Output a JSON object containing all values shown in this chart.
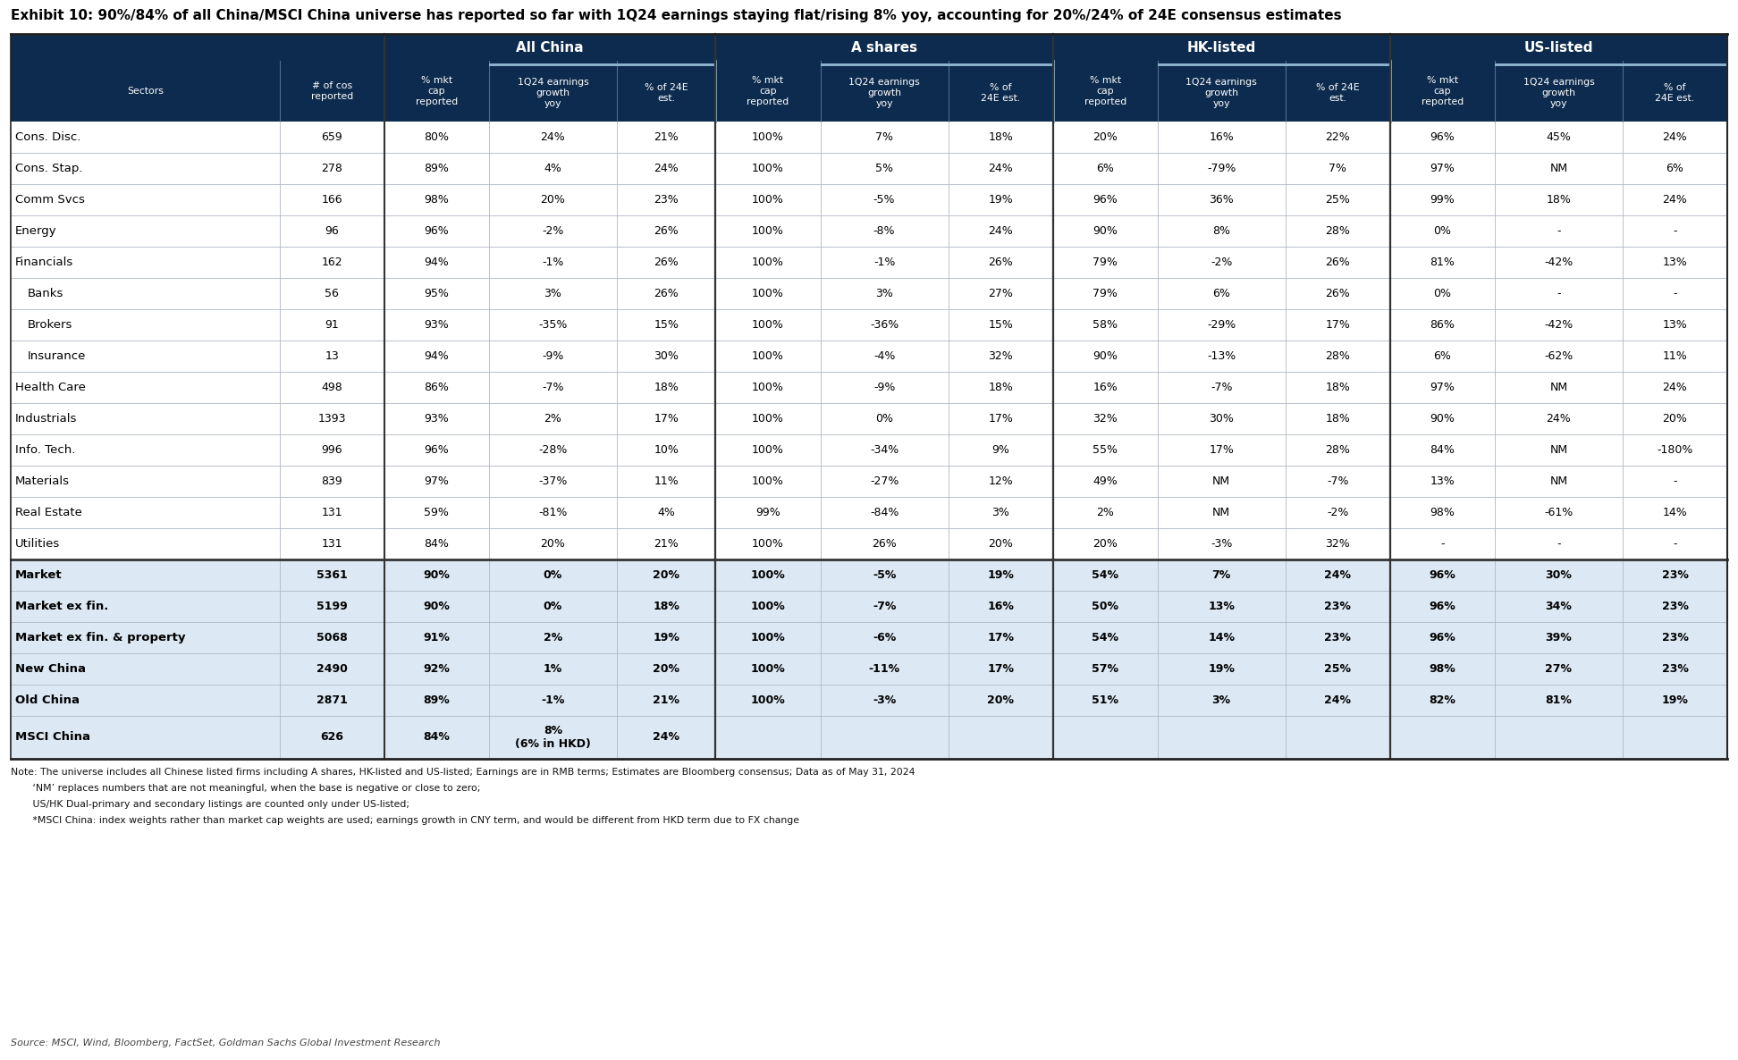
{
  "title": "Exhibit 10: 90%/84% of all China/MSCI China universe has reported so far with 1Q24 earnings staying flat/rising 8% yoy, accounting for 20%/24% of 24E consensus estimates",
  "header_bg": "#0d2b4e",
  "header_text": "#ffffff",
  "subheader_groups": [
    "All China",
    "A shares",
    "HK-listed",
    "US-listed"
  ],
  "highlight_bg": "#dce9f5",
  "rows": [
    {
      "sector": "Cons. Disc.",
      "indent": 0,
      "bg": "#ffffff",
      "bold": false,
      "data": [
        "659",
        "80%",
        "24%",
        "21%",
        "100%",
        "7%",
        "18%",
        "20%",
        "16%",
        "22%",
        "96%",
        "45%",
        "24%"
      ]
    },
    {
      "sector": "Cons. Stap.",
      "indent": 0,
      "bg": "#ffffff",
      "bold": false,
      "data": [
        "278",
        "89%",
        "4%",
        "24%",
        "100%",
        "5%",
        "24%",
        "6%",
        "-79%",
        "7%",
        "97%",
        "NM",
        "6%"
      ]
    },
    {
      "sector": "Comm Svcs",
      "indent": 0,
      "bg": "#ffffff",
      "bold": false,
      "data": [
        "166",
        "98%",
        "20%",
        "23%",
        "100%",
        "-5%",
        "19%",
        "96%",
        "36%",
        "25%",
        "99%",
        "18%",
        "24%"
      ]
    },
    {
      "sector": "Energy",
      "indent": 0,
      "bg": "#ffffff",
      "bold": false,
      "data": [
        "96",
        "96%",
        "-2%",
        "26%",
        "100%",
        "-8%",
        "24%",
        "90%",
        "8%",
        "28%",
        "0%",
        "-",
        "-"
      ]
    },
    {
      "sector": "Financials",
      "indent": 0,
      "bg": "#ffffff",
      "bold": false,
      "data": [
        "162",
        "94%",
        "-1%",
        "26%",
        "100%",
        "-1%",
        "26%",
        "79%",
        "-2%",
        "26%",
        "81%",
        "-42%",
        "13%"
      ]
    },
    {
      "sector": "Banks",
      "indent": 1,
      "bg": "#ffffff",
      "bold": false,
      "data": [
        "56",
        "95%",
        "3%",
        "26%",
        "100%",
        "3%",
        "27%",
        "79%",
        "6%",
        "26%",
        "0%",
        "-",
        "-"
      ]
    },
    {
      "sector": "Brokers",
      "indent": 1,
      "bg": "#ffffff",
      "bold": false,
      "data": [
        "91",
        "93%",
        "-35%",
        "15%",
        "100%",
        "-36%",
        "15%",
        "58%",
        "-29%",
        "17%",
        "86%",
        "-42%",
        "13%"
      ]
    },
    {
      "sector": "Insurance",
      "indent": 1,
      "bg": "#ffffff",
      "bold": false,
      "data": [
        "13",
        "94%",
        "-9%",
        "30%",
        "100%",
        "-4%",
        "32%",
        "90%",
        "-13%",
        "28%",
        "6%",
        "-62%",
        "11%"
      ]
    },
    {
      "sector": "Health Care",
      "indent": 0,
      "bg": "#ffffff",
      "bold": false,
      "data": [
        "498",
        "86%",
        "-7%",
        "18%",
        "100%",
        "-9%",
        "18%",
        "16%",
        "-7%",
        "18%",
        "97%",
        "NM",
        "24%"
      ]
    },
    {
      "sector": "Industrials",
      "indent": 0,
      "bg": "#ffffff",
      "bold": false,
      "data": [
        "1393",
        "93%",
        "2%",
        "17%",
        "100%",
        "0%",
        "17%",
        "32%",
        "30%",
        "18%",
        "90%",
        "24%",
        "20%"
      ]
    },
    {
      "sector": "Info. Tech.",
      "indent": 0,
      "bg": "#ffffff",
      "bold": false,
      "data": [
        "996",
        "96%",
        "-28%",
        "10%",
        "100%",
        "-34%",
        "9%",
        "55%",
        "17%",
        "28%",
        "84%",
        "NM",
        "-180%"
      ]
    },
    {
      "sector": "Materials",
      "indent": 0,
      "bg": "#ffffff",
      "bold": false,
      "data": [
        "839",
        "97%",
        "-37%",
        "11%",
        "100%",
        "-27%",
        "12%",
        "49%",
        "NM",
        "-7%",
        "13%",
        "NM",
        "-"
      ]
    },
    {
      "sector": "Real Estate",
      "indent": 0,
      "bg": "#ffffff",
      "bold": false,
      "data": [
        "131",
        "59%",
        "-81%",
        "4%",
        "99%",
        "-84%",
        "3%",
        "2%",
        "NM",
        "-2%",
        "98%",
        "-61%",
        "14%"
      ]
    },
    {
      "sector": "Utilities",
      "indent": 0,
      "bg": "#ffffff",
      "bold": false,
      "data": [
        "131",
        "84%",
        "20%",
        "21%",
        "100%",
        "26%",
        "20%",
        "20%",
        "-3%",
        "32%",
        "-",
        "-",
        "-"
      ]
    },
    {
      "sector": "Market",
      "indent": 0,
      "bg": "#dce9f5",
      "bold": true,
      "data": [
        "5361",
        "90%",
        "0%",
        "20%",
        "100%",
        "-5%",
        "19%",
        "54%",
        "7%",
        "24%",
        "96%",
        "30%",
        "23%"
      ]
    },
    {
      "sector": "Market ex fin.",
      "indent": 0,
      "bg": "#dce9f5",
      "bold": true,
      "data": [
        "5199",
        "90%",
        "0%",
        "18%",
        "100%",
        "-7%",
        "16%",
        "50%",
        "13%",
        "23%",
        "96%",
        "34%",
        "23%"
      ]
    },
    {
      "sector": "Market ex fin. & property",
      "indent": 0,
      "bg": "#dce9f5",
      "bold": true,
      "data": [
        "5068",
        "91%",
        "2%",
        "19%",
        "100%",
        "-6%",
        "17%",
        "54%",
        "14%",
        "23%",
        "96%",
        "39%",
        "23%"
      ]
    },
    {
      "sector": "New China",
      "indent": 0,
      "bg": "#dce9f5",
      "bold": true,
      "data": [
        "2490",
        "92%",
        "1%",
        "20%",
        "100%",
        "-11%",
        "17%",
        "57%",
        "19%",
        "25%",
        "98%",
        "27%",
        "23%"
      ]
    },
    {
      "sector": "Old China",
      "indent": 0,
      "bg": "#dce9f5",
      "bold": true,
      "data": [
        "2871",
        "89%",
        "-1%",
        "21%",
        "100%",
        "-3%",
        "20%",
        "51%",
        "3%",
        "24%",
        "82%",
        "81%",
        "19%"
      ]
    },
    {
      "sector": "MSCI China",
      "indent": 0,
      "bg": "#dce9f5",
      "bold": true,
      "msci": true,
      "data": [
        "626",
        "84%",
        "8%\n(6% in HKD)",
        "24%",
        "",
        "",
        "",
        "",
        "",
        "",
        "",
        "",
        ""
      ]
    }
  ],
  "notes": [
    "Note: The universe includes all Chinese listed firms including A shares, HK-listed and US-listed; Earnings are in RMB terms; Estimates are Bloomberg consensus; Data as of May 31, 2024",
    "       ‘NM’ replaces numbers that are not meaningful, when the base is negative or close to zero;",
    "       US/HK Dual-primary and secondary listings are counted only under US-listed;",
    "       *MSCI China: index weights rather than market cap weights are used; earnings growth in CNY term, and would be different from HKD term due to FX change"
  ],
  "source": "Source: MSCI, Wind, Bloomberg, FactSet, Goldman Sachs Global Investment Research",
  "col_widths_rel": [
    1.85,
    0.72,
    0.72,
    0.88,
    0.68,
    0.72,
    0.88,
    0.72,
    0.72,
    0.88,
    0.72,
    0.72,
    0.88,
    0.72
  ]
}
